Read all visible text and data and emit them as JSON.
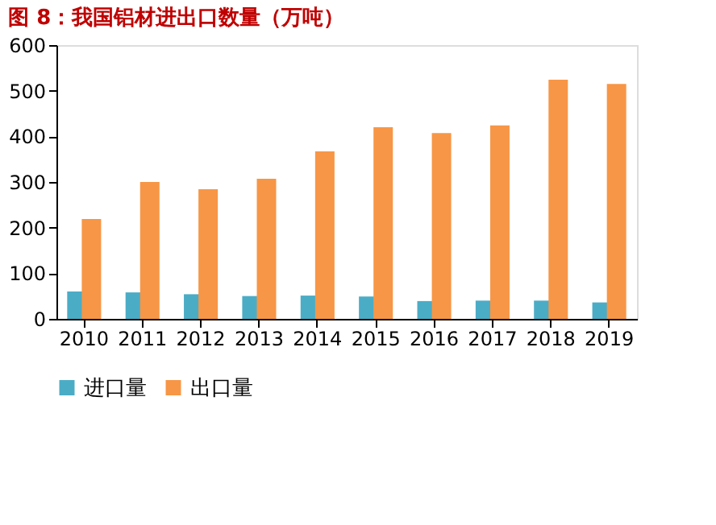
{
  "chart_data": {
    "type": "bar",
    "title": "图 8：我国铝材进出口数量（万吨）",
    "categories": [
      "2010",
      "2011",
      "2012",
      "2013",
      "2014",
      "2015",
      "2016",
      "2017",
      "2018",
      "2019"
    ],
    "series": [
      {
        "name": "进口量",
        "color": "#4bacc6",
        "values": [
          60,
          58,
          54,
          50,
          51,
          49,
          39,
          40,
          40,
          36
        ]
      },
      {
        "name": "出口量",
        "color": "#f79646",
        "values": [
          219,
          300,
          284,
          307,
          367,
          420,
          407,
          424,
          524,
          515
        ]
      }
    ],
    "ylim": [
      0,
      600
    ],
    "yticks": [
      0,
      100,
      200,
      300,
      400,
      500,
      600
    ],
    "grid": false,
    "legend": "bottom"
  }
}
